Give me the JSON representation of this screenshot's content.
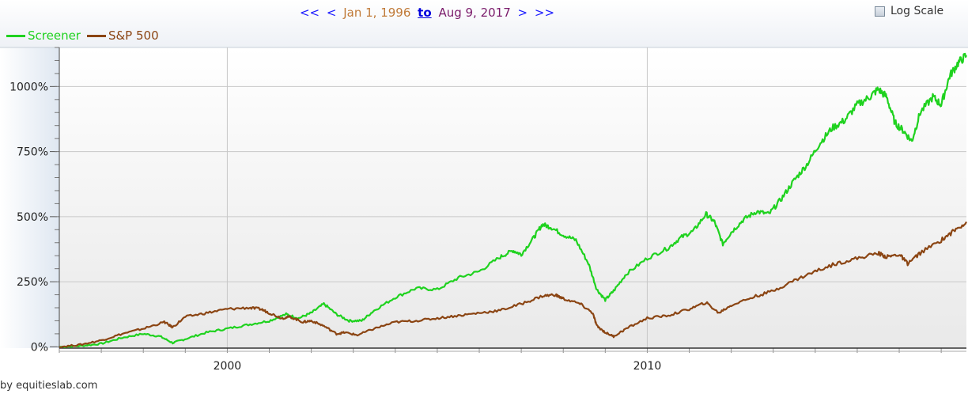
{
  "nav": {
    "first": "<<",
    "prev": "<",
    "start_date": "Jan 1, 1996",
    "to_label": "to",
    "end_date": "Aug 9, 2017",
    "next": ">",
    "last": ">>"
  },
  "log_scale_label": "Log Scale",
  "log_scale_checked": false,
  "credit": "by equitieslab.com",
  "colors": {
    "screener": "#1fd21f",
    "sp500": "#8b4513",
    "link": "#1a1aff"
  },
  "chart_data": {
    "type": "line",
    "title": "",
    "xlabel": "",
    "ylabel": "",
    "x_range": [
      1996.0,
      2017.6
    ],
    "ylim": [
      -5,
      1150
    ],
    "y_ticks": [
      0,
      250,
      500,
      750,
      1000
    ],
    "y_tick_labels": [
      "0%",
      "250%",
      "500%",
      "750%",
      "1000%"
    ],
    "x_ticks": [
      2000,
      2010
    ],
    "x_tick_labels": [
      "2000",
      "2010"
    ],
    "legend_position": "top-left",
    "grid": true,
    "series": [
      {
        "name": "Screener",
        "points": [
          [
            1996.0,
            0
          ],
          [
            1996.5,
            3
          ],
          [
            1997.0,
            12
          ],
          [
            1997.5,
            35
          ],
          [
            1998.0,
            50
          ],
          [
            1998.4,
            40
          ],
          [
            1998.7,
            15
          ],
          [
            1999.0,
            30
          ],
          [
            1999.5,
            55
          ],
          [
            2000.0,
            70
          ],
          [
            2000.5,
            85
          ],
          [
            2001.0,
            100
          ],
          [
            2001.4,
            125
          ],
          [
            2001.7,
            110
          ],
          [
            2002.0,
            130
          ],
          [
            2002.3,
            165
          ],
          [
            2002.6,
            125
          ],
          [
            2002.9,
            100
          ],
          [
            2003.2,
            100
          ],
          [
            2003.5,
            140
          ],
          [
            2004.0,
            190
          ],
          [
            2004.5,
            225
          ],
          [
            2005.0,
            220
          ],
          [
            2005.5,
            265
          ],
          [
            2006.0,
            290
          ],
          [
            2006.5,
            345
          ],
          [
            2006.8,
            370
          ],
          [
            2007.0,
            355
          ],
          [
            2007.3,
            420
          ],
          [
            2007.5,
            470
          ],
          [
            2007.7,
            460
          ],
          [
            2008.0,
            430
          ],
          [
            2008.3,
            410
          ],
          [
            2008.6,
            320
          ],
          [
            2008.8,
            220
          ],
          [
            2009.0,
            180
          ],
          [
            2009.2,
            215
          ],
          [
            2009.5,
            280
          ],
          [
            2010.0,
            340
          ],
          [
            2010.5,
            380
          ],
          [
            2010.8,
            420
          ],
          [
            2011.1,
            445
          ],
          [
            2011.4,
            510
          ],
          [
            2011.6,
            480
          ],
          [
            2011.8,
            395
          ],
          [
            2012.0,
            440
          ],
          [
            2012.3,
            490
          ],
          [
            2012.6,
            520
          ],
          [
            2012.9,
            510
          ],
          [
            2013.2,
            570
          ],
          [
            2013.5,
            640
          ],
          [
            2013.8,
            700
          ],
          [
            2014.1,
            780
          ],
          [
            2014.4,
            840
          ],
          [
            2014.7,
            870
          ],
          [
            2015.0,
            930
          ],
          [
            2015.3,
            960
          ],
          [
            2015.5,
            990
          ],
          [
            2015.7,
            960
          ],
          [
            2015.9,
            860
          ],
          [
            2016.1,
            830
          ],
          [
            2016.3,
            790
          ],
          [
            2016.5,
            900
          ],
          [
            2016.8,
            960
          ],
          [
            2017.0,
            930
          ],
          [
            2017.2,
            1040
          ],
          [
            2017.4,
            1090
          ],
          [
            2017.6,
            1120
          ]
        ]
      },
      {
        "name": "S&P 500",
        "points": [
          [
            1996.0,
            0
          ],
          [
            1996.5,
            8
          ],
          [
            1997.0,
            25
          ],
          [
            1997.5,
            50
          ],
          [
            1998.0,
            70
          ],
          [
            1998.5,
            95
          ],
          [
            1998.7,
            75
          ],
          [
            1999.0,
            115
          ],
          [
            1999.5,
            130
          ],
          [
            2000.0,
            145
          ],
          [
            2000.5,
            150
          ],
          [
            2000.8,
            145
          ],
          [
            2001.0,
            130
          ],
          [
            2001.3,
            110
          ],
          [
            2001.5,
            115
          ],
          [
            2001.8,
            95
          ],
          [
            2002.0,
            100
          ],
          [
            2002.3,
            80
          ],
          [
            2002.6,
            50
          ],
          [
            2002.8,
            55
          ],
          [
            2003.1,
            45
          ],
          [
            2003.5,
            70
          ],
          [
            2004.0,
            95
          ],
          [
            2004.5,
            100
          ],
          [
            2005.0,
            110
          ],
          [
            2005.5,
            120
          ],
          [
            2006.0,
            130
          ],
          [
            2006.5,
            140
          ],
          [
            2007.0,
            165
          ],
          [
            2007.5,
            195
          ],
          [
            2007.8,
            200
          ],
          [
            2008.0,
            185
          ],
          [
            2008.4,
            165
          ],
          [
            2008.7,
            130
          ],
          [
            2008.8,
            80
          ],
          [
            2009.0,
            55
          ],
          [
            2009.2,
            40
          ],
          [
            2009.5,
            70
          ],
          [
            2010.0,
            110
          ],
          [
            2010.5,
            120
          ],
          [
            2011.0,
            145
          ],
          [
            2011.4,
            170
          ],
          [
            2011.7,
            130
          ],
          [
            2012.0,
            160
          ],
          [
            2012.5,
            190
          ],
          [
            2013.0,
            215
          ],
          [
            2013.5,
            255
          ],
          [
            2014.0,
            290
          ],
          [
            2014.5,
            320
          ],
          [
            2015.0,
            340
          ],
          [
            2015.5,
            360
          ],
          [
            2015.7,
            345
          ],
          [
            2016.0,
            355
          ],
          [
            2016.2,
            320
          ],
          [
            2016.5,
            360
          ],
          [
            2017.0,
            410
          ],
          [
            2017.3,
            445
          ],
          [
            2017.6,
            480
          ]
        ]
      }
    ]
  }
}
